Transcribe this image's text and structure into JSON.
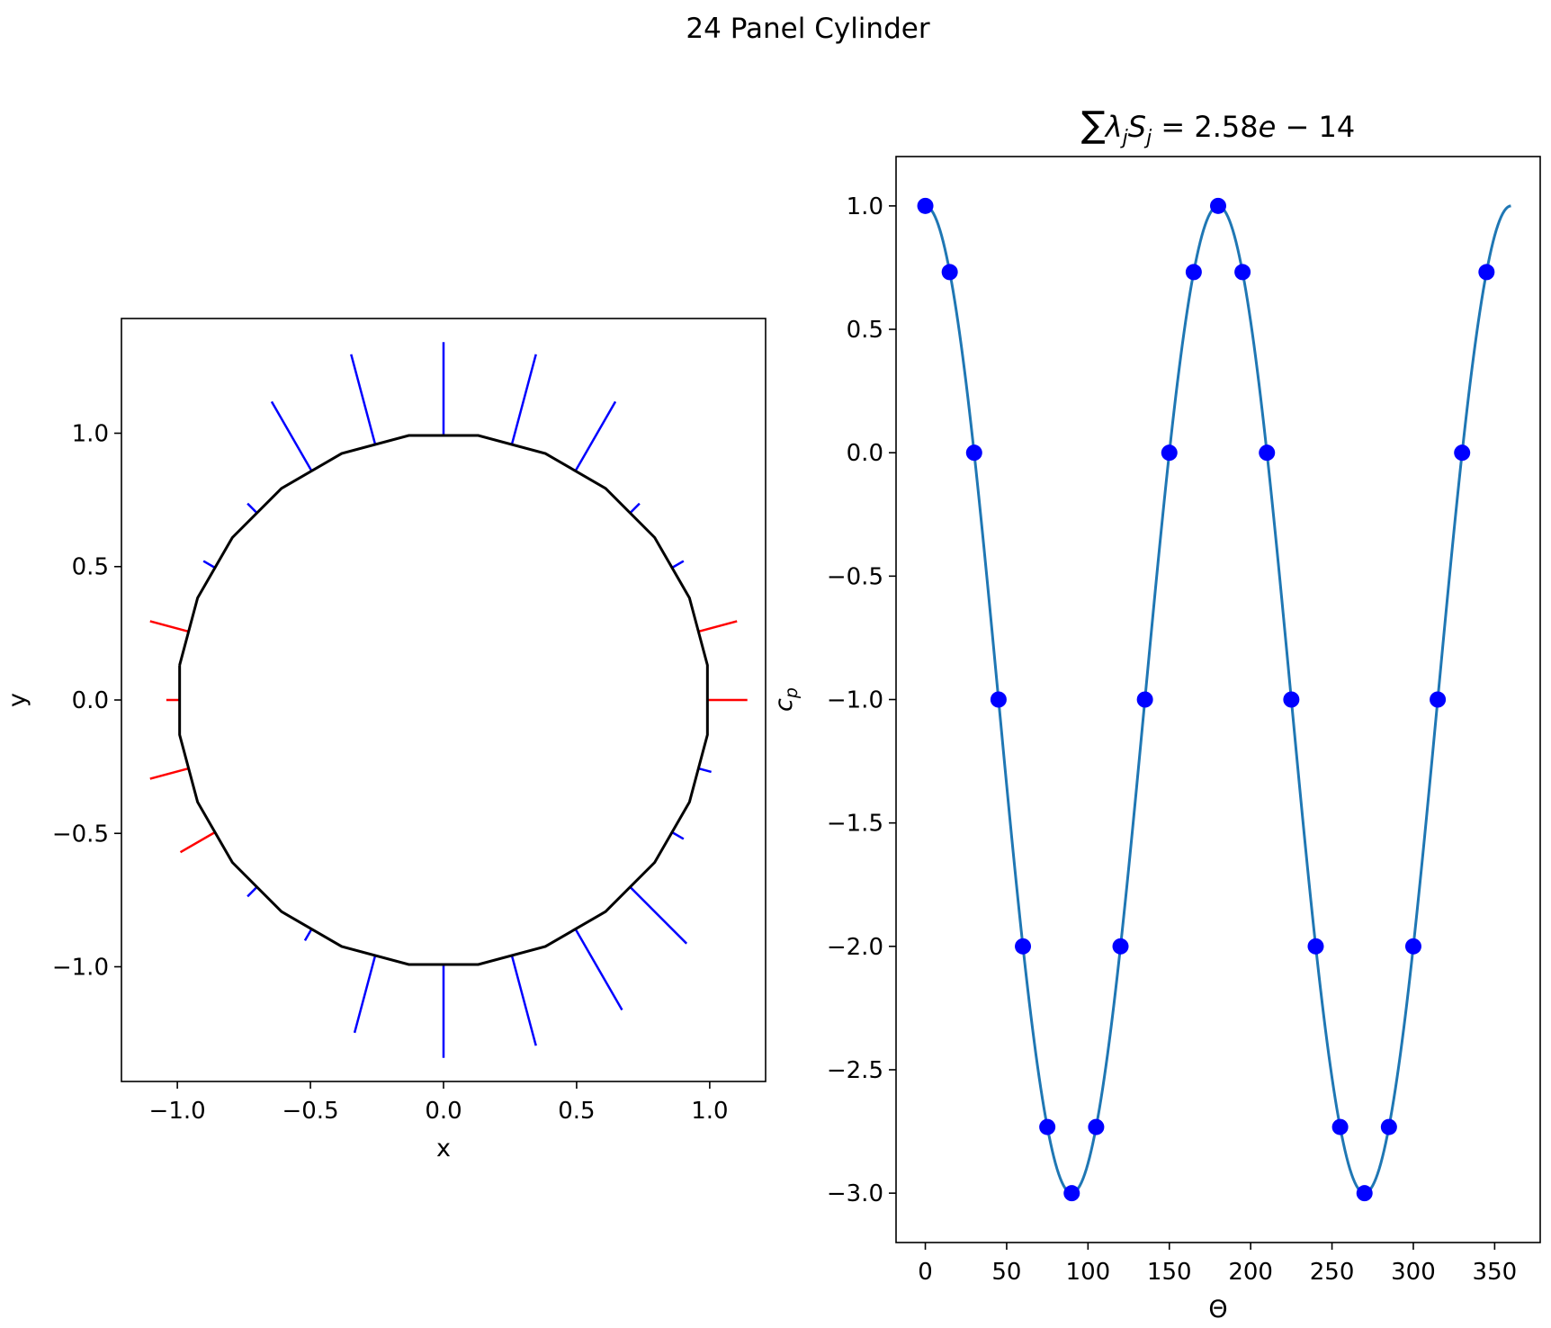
{
  "figure": {
    "suptitle": "24 Panel Cylinder"
  },
  "chart_data": [
    {
      "type": "line",
      "name": "panel-geometry",
      "title": "",
      "xlabel": "x",
      "ylabel": "y",
      "xlim": [
        -1.21,
        1.21
      ],
      "ylim": [
        -1.43,
        1.43
      ],
      "xticks": [
        "−1.0",
        "−0.5",
        "0.0",
        "0.5",
        "1.0"
      ],
      "xtick_values": [
        -1.0,
        -0.5,
        0.0,
        0.5,
        1.0
      ],
      "yticks": [
        "−1.0",
        "−0.5",
        "0.0",
        "0.5",
        "1.0"
      ],
      "ytick_values": [
        -1.0,
        -0.5,
        0.0,
        0.5,
        1.0
      ],
      "grid": false,
      "n_panels": 24,
      "polygon_color": "#000000",
      "positive_normal_color": "#0000ff",
      "negative_normal_color": "#ff0000",
      "panel_normals_length": [
        0.0,
        0.1,
        0.0,
        0.0,
        0.25,
        0.3,
        0.3,
        0.3,
        0.25,
        0.0,
        0.0,
        0.1,
        0.1,
        0.0,
        0.0,
        0.25,
        0.3,
        0.3,
        0.3,
        0.25,
        0.0,
        0.0,
        0.1,
        0.1
      ],
      "panel_normals_sign": [
        -1,
        -1,
        1,
        1,
        1,
        1,
        1,
        1,
        1,
        1,
        1,
        -1,
        -1,
        1,
        1,
        1,
        1,
        1,
        1,
        1,
        1,
        1,
        -1,
        -1
      ]
    },
    {
      "type": "line",
      "name": "pressure-coefficient",
      "title": "∑λjSj = 2.58e − 14",
      "title_parts": {
        "sym": "∑",
        "lam": "λ",
        "j1": "j",
        "s": "S",
        "j2": "j",
        "rest": " = 2.58",
        "e": "e",
        "tail": " − 14"
      },
      "xlabel": "Θ",
      "ylabel": "c",
      "ylabel_sub": "p",
      "xlim": [
        -18,
        378
      ],
      "ylim": [
        -3.2,
        1.2
      ],
      "xticks": [
        "0",
        "50",
        "100",
        "150",
        "200",
        "250",
        "300",
        "350"
      ],
      "xtick_values": [
        0,
        50,
        100,
        150,
        200,
        250,
        300,
        350
      ],
      "yticks": [
        "1.0",
        "0.5",
        "0.0",
        "−0.5",
        "−1.0",
        "−1.5",
        "−2.0",
        "−2.5",
        "−3.0"
      ],
      "ytick_values": [
        1.0,
        0.5,
        0.0,
        -0.5,
        -1.0,
        -1.5,
        -2.0,
        -2.5,
        -3.0
      ],
      "grid": false,
      "series": [
        {
          "kind": "curve",
          "color": "#1f77b4",
          "formula": "1 - 4*sin(theta)^2",
          "x_range": [
            0,
            360
          ]
        },
        {
          "kind": "markers",
          "color": "#0000ff",
          "x": [
            0,
            15,
            30,
            45,
            60,
            75,
            90,
            105,
            120,
            135,
            150,
            165,
            180,
            195,
            210,
            225,
            240,
            255,
            270,
            285,
            300,
            315,
            330,
            345
          ],
          "y": [
            1.0,
            0.732,
            0.0,
            -1.0,
            -2.0,
            -2.732,
            -3.0,
            -2.732,
            -2.0,
            -1.0,
            0.0,
            0.732,
            1.0,
            0.732,
            0.0,
            -1.0,
            -2.0,
            -2.732,
            -3.0,
            -2.732,
            -2.0,
            -1.0,
            0.0,
            0.732
          ]
        }
      ]
    }
  ]
}
